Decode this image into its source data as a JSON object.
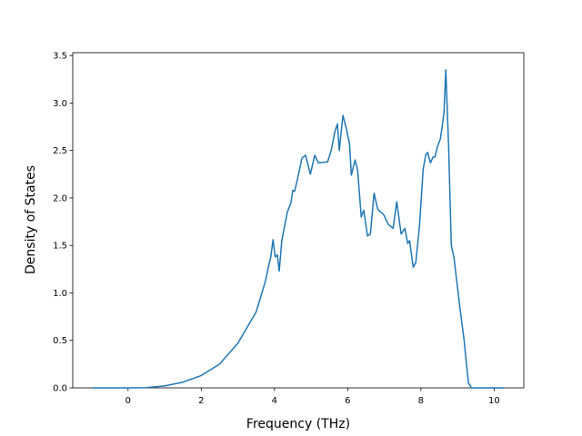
{
  "chart_data": {
    "type": "line",
    "xlabel": "Frequency (THz)",
    "ylabel": "Density of States",
    "color": "#1f77b4",
    "x": [
      -0.97,
      0,
      0.5,
      1.0,
      1.5,
      2.0,
      2.5,
      3.0,
      3.5,
      3.75,
      3.85,
      3.9,
      3.96,
      4.02,
      4.08,
      4.13,
      4.2,
      4.35,
      4.45,
      4.5,
      4.55,
      4.63,
      4.75,
      4.85,
      4.98,
      5.1,
      5.2,
      5.45,
      5.55,
      5.65,
      5.72,
      5.77,
      5.87,
      5.97,
      6.05,
      6.1,
      6.2,
      6.27,
      6.37,
      6.44,
      6.54,
      6.62,
      6.72,
      6.82,
      6.99,
      7.11,
      7.24,
      7.34,
      7.46,
      7.56,
      7.64,
      7.69,
      7.79,
      7.86,
      7.96,
      8.06,
      8.13,
      8.18,
      8.26,
      8.33,
      8.38,
      8.46,
      8.53,
      8.58,
      8.63,
      8.68,
      8.76,
      8.83,
      8.9,
      8.98,
      9.08,
      9.18,
      9.23,
      9.3,
      9.38,
      10.25
    ],
    "values": [
      0,
      0,
      0.003,
      0.02,
      0.06,
      0.13,
      0.25,
      0.47,
      0.8,
      1.12,
      1.3,
      1.38,
      1.56,
      1.38,
      1.4,
      1.23,
      1.55,
      1.85,
      1.95,
      2.08,
      2.07,
      2.2,
      2.42,
      2.45,
      2.25,
      2.45,
      2.37,
      2.38,
      2.5,
      2.7,
      2.78,
      2.5,
      2.87,
      2.72,
      2.57,
      2.24,
      2.4,
      2.3,
      1.8,
      1.87,
      1.6,
      1.62,
      2.05,
      1.88,
      1.82,
      1.72,
      1.68,
      1.96,
      1.62,
      1.68,
      1.52,
      1.55,
      1.27,
      1.32,
      1.7,
      2.3,
      2.45,
      2.48,
      2.37,
      2.43,
      2.43,
      2.55,
      2.62,
      2.75,
      2.9,
      3.35,
      2.5,
      1.5,
      1.38,
      1.12,
      0.8,
      0.5,
      0.3,
      0.05,
      0,
      0
    ],
    "xlim": [
      -1.51,
      10.81
    ],
    "ylim": [
      0,
      3.53
    ],
    "xticks": [
      0,
      2,
      4,
      6,
      8,
      10
    ],
    "yticks": [
      {
        "value": 0,
        "label": "0.0"
      },
      {
        "value": 0.5,
        "label": "0.5"
      },
      {
        "value": 1,
        "label": "1.0"
      },
      {
        "value": 1.5,
        "label": "1.5"
      },
      {
        "value": 2,
        "label": "2.0"
      },
      {
        "value": 2.5,
        "label": "2.5"
      },
      {
        "value": 3,
        "label": "3.0"
      },
      {
        "value": 3.5,
        "label": "3.5"
      }
    ]
  }
}
